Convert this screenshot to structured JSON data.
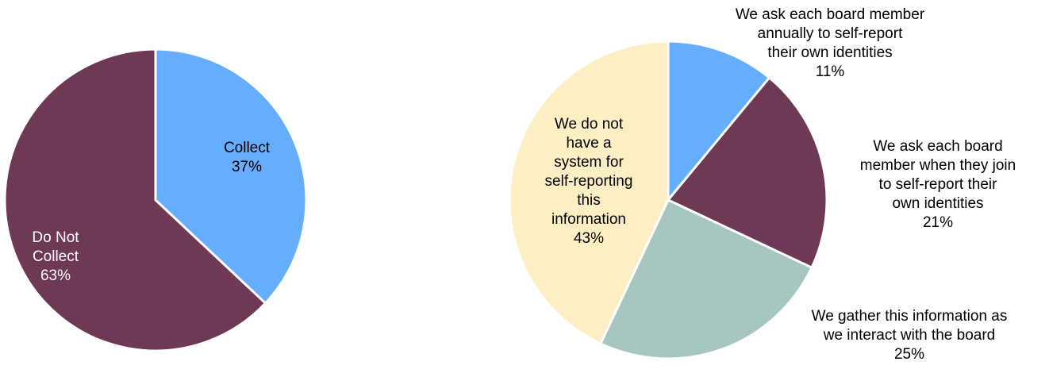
{
  "charts": [
    {
      "chart_data": {
        "type": "pie",
        "categories": [
          "Collect",
          "Do Not Collect"
        ],
        "values": [
          37,
          63
        ],
        "value_suffix": "%",
        "colors": [
          "#66adfd",
          "#6d3954"
        ],
        "label_colors": [
          "#000000",
          "#ffffff"
        ],
        "label_position": "inside",
        "start": "top",
        "direction": "clockwise",
        "title": "",
        "legend": "none"
      }
    },
    {
      "chart_data": {
        "type": "pie",
        "categories": [
          "We ask each board member annually to self-report their own identities",
          "We ask each board member when they join to self-report their own identities",
          "We gather this information as we interact with the board",
          "We do not have a system for self-reporting this information"
        ],
        "values": [
          11,
          21,
          25,
          43
        ],
        "value_suffix": "%",
        "colors": [
          "#66adfd",
          "#6d3954",
          "#a8c6c0",
          "#fdefc3"
        ],
        "label_colors": [
          "#000000",
          "#000000",
          "#000000",
          "#000000"
        ],
        "label_position": "outside except last inside",
        "start": "top",
        "direction": "clockwise",
        "title": "",
        "legend": "none"
      }
    }
  ]
}
